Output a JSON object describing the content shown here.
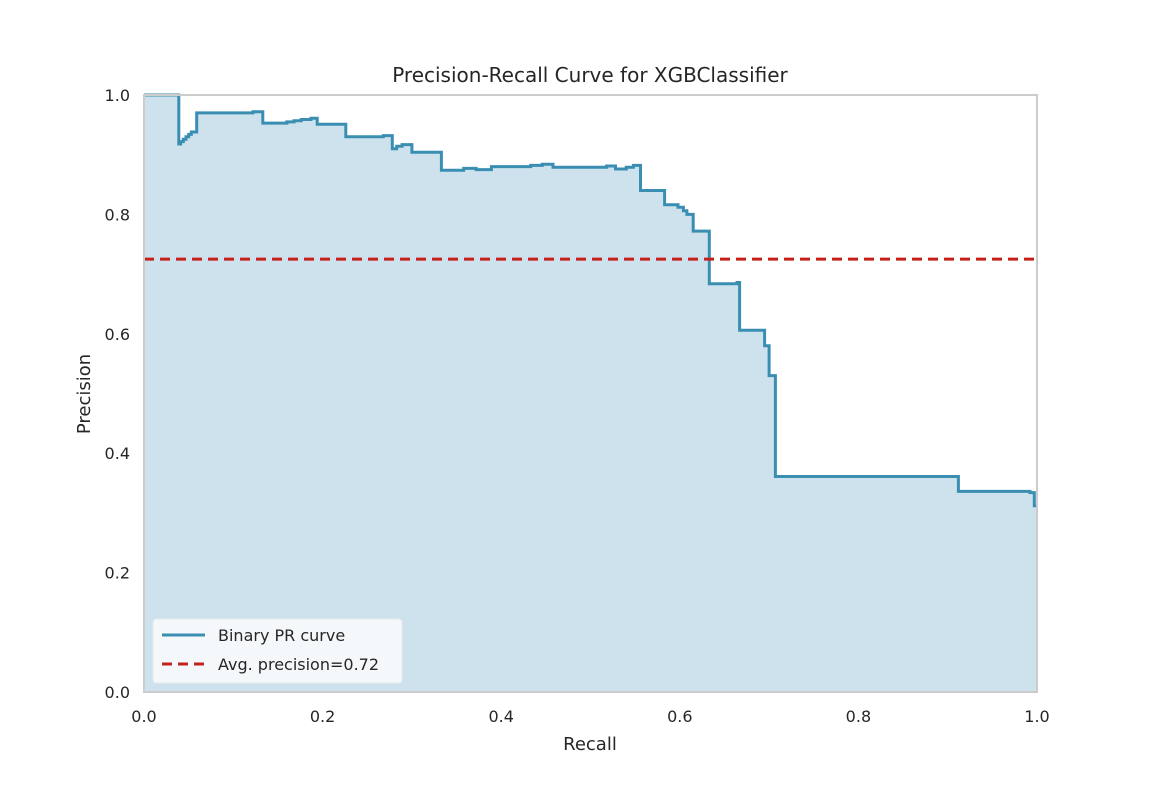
{
  "chart_data": {
    "type": "area",
    "title": "Precision-Recall Curve for XGBClassifier",
    "xlabel": "Recall",
    "ylabel": "Precision",
    "xlim": [
      0.0,
      1.0
    ],
    "ylim": [
      0.0,
      1.0
    ],
    "xticks": [
      "0.0",
      "0.2",
      "0.4",
      "0.6",
      "0.8",
      "1.0"
    ],
    "yticks": [
      "0.0",
      "0.2",
      "0.4",
      "0.6",
      "0.8",
      "1.0"
    ],
    "grid": false,
    "legend_position": "lower-left",
    "series": [
      {
        "name": "Binary PR curve",
        "color": "#3a8eb2",
        "fill_color": "#cde2ec",
        "step": "post",
        "points": [
          [
            0.0,
            1.0
          ],
          [
            0.039,
            1.0
          ],
          [
            0.039,
            0.918
          ],
          [
            0.041,
            0.918
          ],
          [
            0.041,
            0.922
          ],
          [
            0.044,
            0.922
          ],
          [
            0.044,
            0.926
          ],
          [
            0.047,
            0.926
          ],
          [
            0.047,
            0.93
          ],
          [
            0.05,
            0.93
          ],
          [
            0.05,
            0.934
          ],
          [
            0.053,
            0.934
          ],
          [
            0.053,
            0.938
          ],
          [
            0.059,
            0.938
          ],
          [
            0.059,
            0.97
          ],
          [
            0.122,
            0.97
          ],
          [
            0.122,
            0.972
          ],
          [
            0.133,
            0.972
          ],
          [
            0.133,
            0.953
          ],
          [
            0.16,
            0.953
          ],
          [
            0.16,
            0.955
          ],
          [
            0.168,
            0.955
          ],
          [
            0.168,
            0.957
          ],
          [
            0.176,
            0.957
          ],
          [
            0.176,
            0.959
          ],
          [
            0.187,
            0.959
          ],
          [
            0.187,
            0.961
          ],
          [
            0.194,
            0.961
          ],
          [
            0.194,
            0.951
          ],
          [
            0.226,
            0.951
          ],
          [
            0.226,
            0.93
          ],
          [
            0.268,
            0.93
          ],
          [
            0.268,
            0.932
          ],
          [
            0.278,
            0.932
          ],
          [
            0.278,
            0.91
          ],
          [
            0.283,
            0.91
          ],
          [
            0.283,
            0.914
          ],
          [
            0.289,
            0.914
          ],
          [
            0.289,
            0.917
          ],
          [
            0.3,
            0.917
          ],
          [
            0.3,
            0.904
          ],
          [
            0.333,
            0.904
          ],
          [
            0.333,
            0.874
          ],
          [
            0.358,
            0.874
          ],
          [
            0.358,
            0.877
          ],
          [
            0.372,
            0.877
          ],
          [
            0.372,
            0.875
          ],
          [
            0.389,
            0.875
          ],
          [
            0.389,
            0.88
          ],
          [
            0.433,
            0.88
          ],
          [
            0.433,
            0.882
          ],
          [
            0.446,
            0.882
          ],
          [
            0.446,
            0.884
          ],
          [
            0.458,
            0.884
          ],
          [
            0.458,
            0.879
          ],
          [
            0.518,
            0.879
          ],
          [
            0.518,
            0.881
          ],
          [
            0.528,
            0.881
          ],
          [
            0.528,
            0.876
          ],
          [
            0.54,
            0.876
          ],
          [
            0.54,
            0.879
          ],
          [
            0.548,
            0.879
          ],
          [
            0.548,
            0.882
          ],
          [
            0.556,
            0.882
          ],
          [
            0.556,
            0.84
          ],
          [
            0.583,
            0.84
          ],
          [
            0.583,
            0.816
          ],
          [
            0.598,
            0.816
          ],
          [
            0.598,
            0.812
          ],
          [
            0.604,
            0.812
          ],
          [
            0.604,
            0.806
          ],
          [
            0.608,
            0.806
          ],
          [
            0.608,
            0.8
          ],
          [
            0.615,
            0.8
          ],
          [
            0.615,
            0.772
          ],
          [
            0.633,
            0.772
          ],
          [
            0.633,
            0.684
          ],
          [
            0.664,
            0.684
          ],
          [
            0.664,
            0.686
          ],
          [
            0.667,
            0.686
          ],
          [
            0.667,
            0.606
          ],
          [
            0.695,
            0.606
          ],
          [
            0.695,
            0.58
          ],
          [
            0.7,
            0.58
          ],
          [
            0.7,
            0.53
          ],
          [
            0.707,
            0.53
          ],
          [
            0.707,
            0.361
          ],
          [
            0.912,
            0.361
          ],
          [
            0.912,
            0.336
          ],
          [
            0.992,
            0.336
          ],
          [
            0.992,
            0.334
          ],
          [
            0.997,
            0.334
          ],
          [
            0.997,
            0.312
          ],
          [
            1.0,
            0.312
          ]
        ]
      },
      {
        "name": "Avg. precision=0.72",
        "color": "#c4211a",
        "style": "dashed",
        "y": 0.725
      }
    ]
  }
}
